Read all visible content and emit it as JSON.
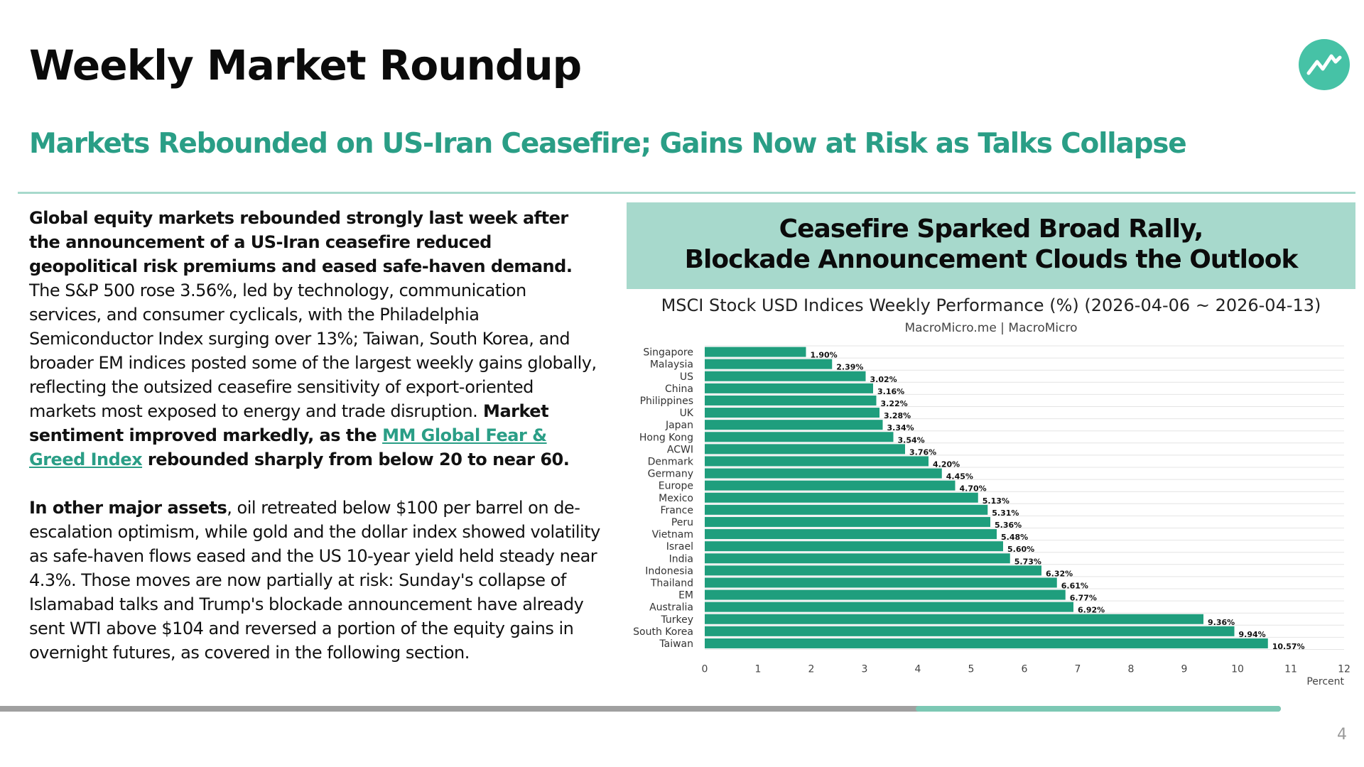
{
  "header": {
    "title": "Weekly Market Roundup",
    "subtitle": "Markets Rebounded on US-Iran Ceasefire; Gains Now at Risk as Talks Collapse",
    "logo_icon": "trend-line-icon",
    "accent_color": "#2a9e86"
  },
  "body": {
    "p1_bold": "Global equity markets rebounded strongly last week after the announcement of a US-Iran ceasefire reduced geopolitical risk premiums and eased safe-haven demand.",
    "p1_text": " The S&P 500 rose 3.56%, led by technology, communication services, and consumer cyclicals, with the Philadelphia Semiconductor Index surging over 13%; Taiwan, South Korea, and broader EM indices posted some of the largest weekly gains globally, reflecting the outsized ceasefire sensitivity of export-oriented markets most exposed to energy and trade disruption.",
    "p1_bold2": " Market sentiment improved markedly, as the ",
    "p1_link": "MM Global Fear & Greed Index",
    "p1_bold3": " rebounded sharply from below 20 to near 60.",
    "p2_bold": "In other major assets",
    "p2_text": ", oil retreated below $100 per barrel on de-escalation optimism, while gold and the dollar index showed volatility as safe-haven flows eased and the US 10-year yield held steady near 4.3%. Those moves are now partially at risk: Sunday's collapse of Islamabad talks and Trump's blockade announcement have already sent WTI above $104 and reversed a portion of the equity gains in overnight futures, as covered in the following section."
  },
  "panel": {
    "header_line1": "Ceasefire Sparked Broad Rally,",
    "header_line2": "Blockade Announcement Clouds the Outlook",
    "header_bg": "#a7d9cc"
  },
  "chart_data": {
    "type": "bar",
    "orientation": "horizontal",
    "title": "MSCI Stock USD Indices Weekly Performance (%) (2026-04-06 ~ 2026-04-13)",
    "subtitle": "MacroMicro.me | MacroMicro",
    "xlabel": "Percent",
    "xlim": [
      0,
      12
    ],
    "xticks": [
      "0",
      "1",
      "2",
      "3",
      "4",
      "5",
      "6",
      "7",
      "8",
      "9",
      "10",
      "11",
      "12"
    ],
    "grid": true,
    "bar_color": "#1f9e7d",
    "categories": [
      "Singapore",
      "Malaysia",
      "US",
      "China",
      "Philippines",
      "UK",
      "Japan",
      "Hong Kong",
      "ACWI",
      "Denmark",
      "Germany",
      "Europe",
      "Mexico",
      "France",
      "Peru",
      "Vietnam",
      "Israel",
      "India",
      "Indonesia",
      "Thailand",
      "EM",
      "Australia",
      "Turkey",
      "South Korea",
      "Taiwan"
    ],
    "values": [
      1.9,
      2.39,
      3.02,
      3.16,
      3.22,
      3.28,
      3.34,
      3.54,
      3.76,
      4.2,
      4.45,
      4.7,
      5.13,
      5.31,
      5.36,
      5.48,
      5.6,
      5.73,
      6.32,
      6.61,
      6.77,
      6.92,
      9.36,
      9.94,
      10.57
    ],
    "labels": [
      "1.90%",
      "2.39%",
      "3.02%",
      "3.16%",
      "3.22%",
      "3.28%",
      "3.34%",
      "3.54%",
      "3.76%",
      "4.20%",
      "4.45%",
      "4.70%",
      "5.13%",
      "5.31%",
      "5.36%",
      "5.48%",
      "5.60%",
      "5.73%",
      "6.32%",
      "6.61%",
      "6.77%",
      "6.92%",
      "9.36%",
      "9.94%",
      "10.57%"
    ]
  },
  "footer": {
    "page_number": "4",
    "progress_start_fraction": 0.715,
    "progress_end_fraction": 1.0
  }
}
